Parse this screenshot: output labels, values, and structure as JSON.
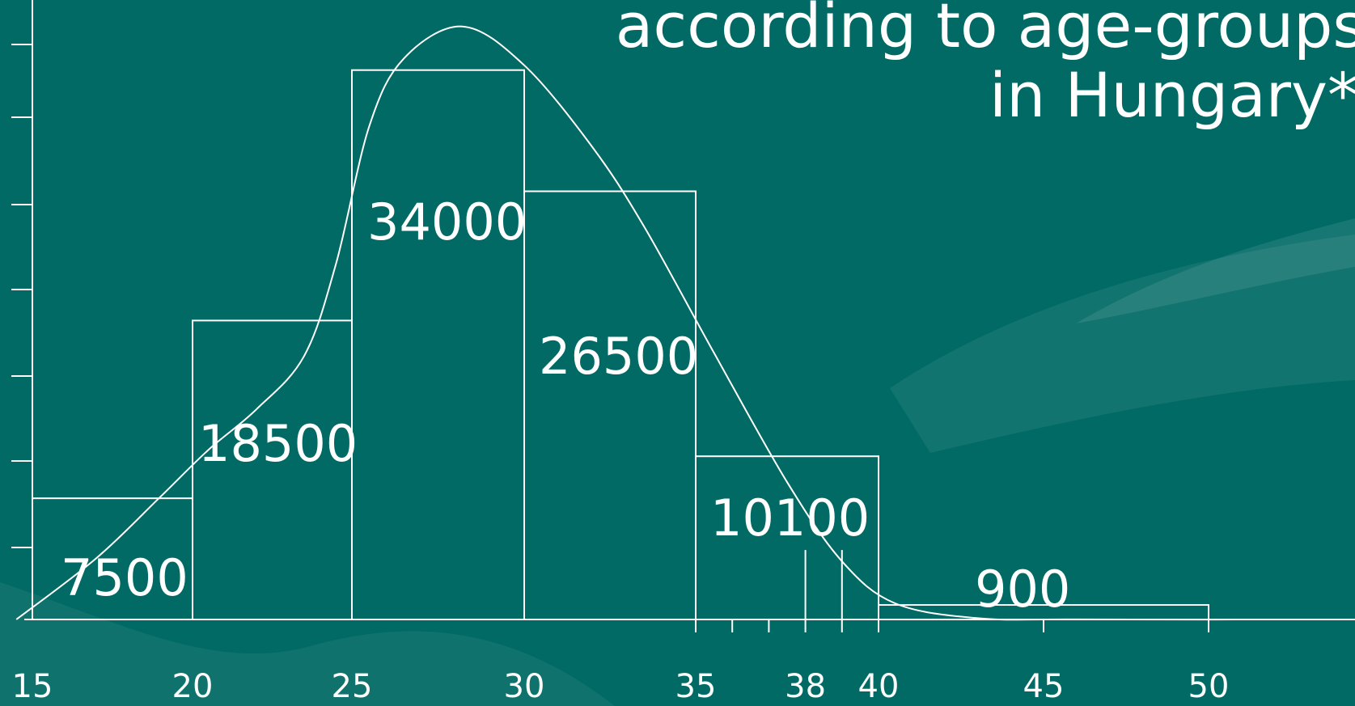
{
  "title_lines": [
    "according to age-groups",
    "in Hungary*"
  ],
  "chart_data": {
    "type": "histogram",
    "title": "",
    "xlabel": "",
    "ylabel": "",
    "x_ticks": [
      15,
      20,
      25,
      30,
      35,
      38,
      40,
      45,
      50
    ],
    "bins": [
      {
        "from": 15,
        "to": 20,
        "value": 7500
      },
      {
        "from": 20,
        "to": 25,
        "value": 18500
      },
      {
        "from": 25,
        "to": 30,
        "value": 34000
      },
      {
        "from": 30,
        "to": 35,
        "value": 26500
      },
      {
        "from": 35,
        "to": 40,
        "value": 10100
      },
      {
        "from": 40,
        "to": 50,
        "value": 900
      }
    ],
    "curve": [
      [
        14.5,
        0
      ],
      [
        17,
        3800
      ],
      [
        19,
        7600
      ],
      [
        20.5,
        10500
      ],
      [
        22,
        13000
      ],
      [
        23.5,
        16300
      ],
      [
        24.5,
        22000
      ],
      [
        25.5,
        30500
      ],
      [
        26.5,
        34700
      ],
      [
        28.2,
        36700
      ],
      [
        30,
        34300
      ],
      [
        32,
        29200
      ],
      [
        33.5,
        24300
      ],
      [
        35.5,
        16500
      ],
      [
        37.5,
        8500
      ],
      [
        39,
        3600
      ],
      [
        40.5,
        1000
      ],
      [
        43,
        80
      ],
      [
        46,
        5
      ],
      [
        55,
        0
      ]
    ],
    "grid": false,
    "legend": "none"
  }
}
